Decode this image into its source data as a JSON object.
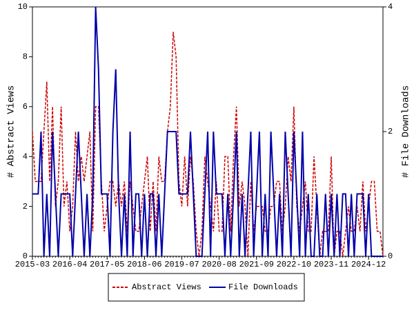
{
  "chart_data": {
    "type": "line",
    "x": [
      "2015-03",
      "2015-04",
      "2015-05",
      "2015-06",
      "2015-07",
      "2015-08",
      "2015-09",
      "2015-10",
      "2015-11",
      "2015-12",
      "2016-01",
      "2016-02",
      "2016-03",
      "2016-04",
      "2016-05",
      "2016-06",
      "2016-07",
      "2016-08",
      "2016-09",
      "2016-10",
      "2016-11",
      "2016-12",
      "2017-01",
      "2017-02",
      "2017-03",
      "2017-04",
      "2017-05",
      "2017-06",
      "2017-07",
      "2017-08",
      "2017-09",
      "2017-10",
      "2017-11",
      "2017-12",
      "2018-01",
      "2018-02",
      "2018-03",
      "2018-04",
      "2018-05",
      "2018-06",
      "2018-07",
      "2018-08",
      "2018-09",
      "2018-10",
      "2018-11",
      "2018-12",
      "2019-01",
      "2019-02",
      "2019-03",
      "2019-04",
      "2019-05",
      "2019-06",
      "2019-07",
      "2019-08",
      "2019-09",
      "2019-10",
      "2019-11",
      "2019-12",
      "2020-01",
      "2020-02",
      "2020-03",
      "2020-04",
      "2020-05",
      "2020-06",
      "2020-07",
      "2020-08",
      "2020-09",
      "2020-10",
      "2020-11",
      "2020-12",
      "2021-01",
      "2021-02",
      "2021-03",
      "2021-04",
      "2021-05",
      "2021-06",
      "2021-07",
      "2021-08",
      "2021-09",
      "2021-10",
      "2021-11",
      "2021-12",
      "2022-01",
      "2022-02",
      "2022-03",
      "2022-04",
      "2022-05",
      "2022-06",
      "2022-07",
      "2022-08",
      "2022-09",
      "2022-10",
      "2022-11",
      "2022-12",
      "2023-01",
      "2023-02",
      "2023-03",
      "2023-04",
      "2023-05",
      "2023-06",
      "2023-07",
      "2023-08",
      "2023-09",
      "2023-10",
      "2023-11",
      "2023-12",
      "2024-01",
      "2024-02",
      "2024-03",
      "2024-04",
      "2024-05",
      "2024-06",
      "2024-07",
      "2024-08",
      "2024-09",
      "2024-10",
      "2024-11",
      "2024-12",
      "2025-01",
      "2025-02",
      "2025-03",
      "2025-04",
      "2025-05"
    ],
    "xticks": [
      "2015-03",
      "2016-04",
      "2017-05",
      "2018-06",
      "2019-07",
      "2020-08",
      "2021-09",
      "2022-10",
      "2023-11",
      "2024-12"
    ],
    "ylabel": "# Abstract Views",
    "y2label": "# File Downloads",
    "ylim": [
      0,
      10
    ],
    "yticks": [
      0,
      2,
      4,
      6,
      8,
      10
    ],
    "y2lim": [
      0,
      4
    ],
    "y2ticks": [
      0,
      2,
      4
    ],
    "legend": "bottom",
    "series": [
      {
        "name": "Abstract Views",
        "color": "#cc0000",
        "dash": true,
        "values": [
          5,
          3,
          3,
          3,
          5,
          7,
          3,
          6,
          2,
          3,
          6,
          2,
          3,
          1,
          2,
          5,
          3,
          4,
          3,
          4,
          5,
          1,
          6,
          6,
          3,
          1,
          2,
          3,
          3,
          2,
          3,
          2,
          3,
          1,
          3,
          2,
          1,
          1,
          2,
          3,
          4,
          1,
          3,
          1,
          4,
          3,
          3,
          5,
          6,
          9,
          8,
          3,
          2,
          4,
          2,
          4,
          3,
          1,
          0,
          1,
          4,
          3,
          2,
          1,
          3,
          1,
          1,
          4,
          4,
          1,
          4,
          6,
          2,
          3,
          2,
          0,
          3,
          1,
          2,
          2,
          2,
          1,
          1,
          2,
          2,
          3,
          3,
          1,
          2,
          4,
          3,
          6,
          2,
          1,
          2,
          3,
          1,
          1,
          4,
          2,
          0,
          1,
          1,
          1,
          4,
          0,
          1,
          1,
          0,
          1,
          2,
          1,
          1,
          2,
          1,
          3,
          1,
          2,
          3,
          3,
          1,
          1,
          0
        ]
      },
      {
        "name": "File Downloads",
        "color": "#0000aa",
        "axis": "y2",
        "values": [
          1,
          1,
          1,
          2,
          0,
          1,
          0,
          2,
          1,
          0,
          1,
          1,
          1,
          1,
          0,
          1,
          2,
          1,
          0,
          1,
          0,
          1,
          4,
          3,
          1,
          1,
          1,
          0,
          2,
          3,
          1,
          0,
          1,
          0,
          2,
          0,
          1,
          1,
          0,
          1,
          0,
          1,
          1,
          0,
          1,
          0,
          1,
          2,
          2,
          2,
          2,
          1,
          1,
          1,
          1,
          2,
          1,
          0,
          0,
          0,
          1,
          2,
          0,
          2,
          1,
          1,
          1,
          0,
          1,
          0,
          1,
          2,
          0,
          1,
          0,
          1,
          2,
          0,
          1,
          2,
          0,
          1,
          0,
          2,
          1,
          0,
          1,
          0,
          2,
          1,
          0,
          2,
          1,
          0,
          2,
          0,
          1,
          0,
          0,
          1,
          0,
          0,
          1,
          0,
          1,
          0,
          1,
          0,
          1,
          1,
          0,
          1,
          0,
          1,
          1,
          1,
          0,
          1,
          0,
          0,
          0,
          0,
          0
        ]
      }
    ]
  }
}
